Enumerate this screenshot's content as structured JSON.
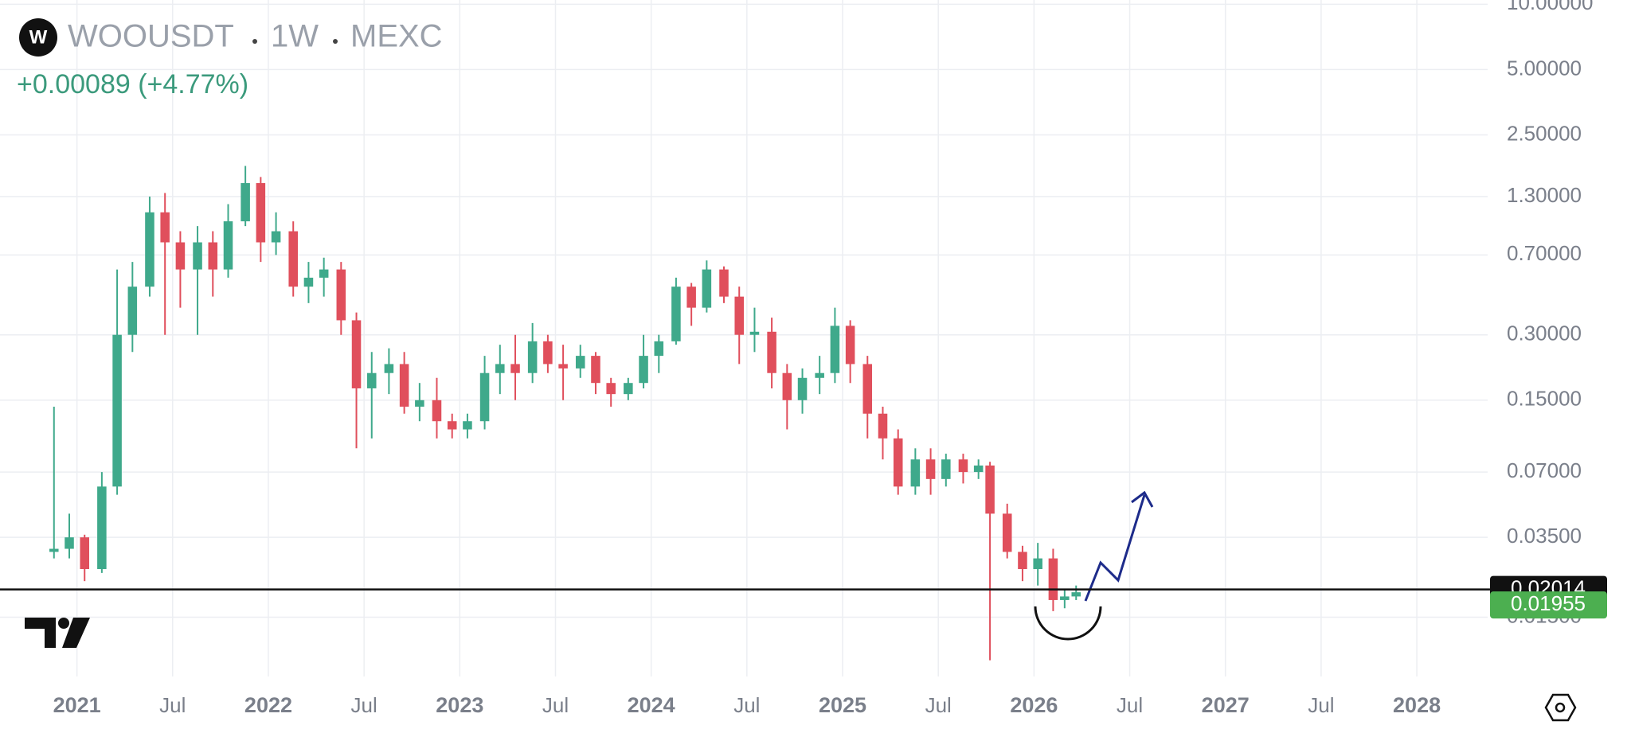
{
  "chart_data": {
    "type": "candlestick",
    "symbol": "WOOUSDT",
    "interval": "1W",
    "exchange": "MEXC",
    "change": "+0.00089 (+4.77%)",
    "log_scale": true,
    "grid": true,
    "up_color": "#3fa98b",
    "down_color": "#e04f5c",
    "xlim": [
      2020.598,
      2028.37
    ],
    "xticks": [
      {
        "value": 2021,
        "label": "2021"
      },
      {
        "value": 2021.5,
        "label": "Jul"
      },
      {
        "value": 2022,
        "label": "2022"
      },
      {
        "value": 2022.5,
        "label": "Jul"
      },
      {
        "value": 2023,
        "label": "2023"
      },
      {
        "value": 2023.5,
        "label": "Jul"
      },
      {
        "value": 2024,
        "label": "2024"
      },
      {
        "value": 2024.5,
        "label": "Jul"
      },
      {
        "value": 2025,
        "label": "2025"
      },
      {
        "value": 2025.5,
        "label": "Jul"
      },
      {
        "value": 2026,
        "label": "2026"
      },
      {
        "value": 2026.5,
        "label": "Jul"
      },
      {
        "value": 2027,
        "label": "2027"
      },
      {
        "value": 2027.5,
        "label": "Jul"
      },
      {
        "value": 2028,
        "label": "2028"
      }
    ],
    "ylim": [
      0.008,
      10.46
    ],
    "yticks": [
      {
        "value": 10,
        "label": "10.00000"
      },
      {
        "value": 5,
        "label": "5.00000"
      },
      {
        "value": 2.5,
        "label": "2.50000"
      },
      {
        "value": 1.3,
        "label": "1.30000"
      },
      {
        "value": 0.7,
        "label": "0.70000"
      },
      {
        "value": 0.3,
        "label": "0.30000"
      },
      {
        "value": 0.15,
        "label": "0.15000"
      },
      {
        "value": 0.07,
        "label": "0.07000"
      },
      {
        "value": 0.035,
        "label": "0.03500"
      },
      {
        "value": 0.015,
        "label": "0.01500"
      }
    ],
    "horizontal_line": {
      "value": 0.02014,
      "label": "0.02014"
    },
    "last_price": {
      "value": 0.01955,
      "label": "0.01955"
    },
    "x": [
      2020.88,
      2020.96,
      2021.04,
      2021.13,
      2021.21,
      2021.29,
      2021.38,
      2021.46,
      2021.54,
      2021.63,
      2021.71,
      2021.79,
      2021.88,
      2021.96,
      2022.04,
      2022.13,
      2022.21,
      2022.29,
      2022.38,
      2022.46,
      2022.54,
      2022.63,
      2022.71,
      2022.79,
      2022.88,
      2022.96,
      2023.04,
      2023.13,
      2023.21,
      2023.29,
      2023.38,
      2023.46,
      2023.54,
      2023.63,
      2023.71,
      2023.79,
      2023.88,
      2023.96,
      2024.04,
      2024.13,
      2024.21,
      2024.29,
      2024.38,
      2024.46,
      2024.54,
      2024.63,
      2024.71,
      2024.79,
      2024.88,
      2024.96,
      2025.04,
      2025.13,
      2025.21,
      2025.29,
      2025.38,
      2025.46,
      2025.54,
      2025.63,
      2025.71,
      2025.77,
      2025.86,
      2025.94,
      2026.02,
      2026.1,
      2026.16,
      2026.22
    ],
    "open": [
      0.03,
      0.031,
      0.035,
      0.025,
      0.06,
      0.3,
      0.5,
      1.1,
      0.8,
      0.6,
      0.8,
      0.6,
      1.0,
      1.5,
      0.8,
      0.9,
      0.5,
      0.55,
      0.6,
      0.35,
      0.17,
      0.2,
      0.22,
      0.14,
      0.15,
      0.12,
      0.11,
      0.12,
      0.2,
      0.22,
      0.2,
      0.28,
      0.22,
      0.21,
      0.24,
      0.18,
      0.16,
      0.18,
      0.24,
      0.28,
      0.5,
      0.4,
      0.6,
      0.45,
      0.3,
      0.31,
      0.2,
      0.15,
      0.19,
      0.2,
      0.33,
      0.22,
      0.13,
      0.1,
      0.06,
      0.08,
      0.065,
      0.08,
      0.07,
      0.075,
      0.045,
      0.03,
      0.025,
      0.028,
      0.018,
      0.0187
    ],
    "high": [
      0.14,
      0.045,
      0.036,
      0.07,
      0.6,
      0.65,
      1.3,
      1.35,
      0.9,
      0.95,
      0.9,
      1.2,
      1.8,
      1.6,
      1.1,
      1.0,
      0.65,
      0.68,
      0.65,
      0.38,
      0.25,
      0.26,
      0.25,
      0.18,
      0.19,
      0.13,
      0.13,
      0.24,
      0.27,
      0.3,
      0.34,
      0.3,
      0.27,
      0.27,
      0.25,
      0.19,
      0.19,
      0.3,
      0.3,
      0.55,
      0.52,
      0.66,
      0.62,
      0.5,
      0.4,
      0.36,
      0.22,
      0.21,
      0.24,
      0.4,
      0.35,
      0.24,
      0.14,
      0.11,
      0.09,
      0.09,
      0.085,
      0.085,
      0.08,
      0.078,
      0.05,
      0.032,
      0.033,
      0.031,
      0.02,
      0.021
    ],
    "low": [
      0.028,
      0.028,
      0.022,
      0.024,
      0.055,
      0.25,
      0.45,
      0.3,
      0.4,
      0.3,
      0.45,
      0.55,
      0.95,
      0.65,
      0.7,
      0.45,
      0.42,
      0.45,
      0.3,
      0.09,
      0.1,
      0.16,
      0.13,
      0.12,
      0.1,
      0.1,
      0.1,
      0.11,
      0.16,
      0.15,
      0.18,
      0.2,
      0.15,
      0.19,
      0.16,
      0.14,
      0.15,
      0.17,
      0.2,
      0.27,
      0.33,
      0.38,
      0.42,
      0.22,
      0.25,
      0.17,
      0.11,
      0.13,
      0.16,
      0.18,
      0.18,
      0.1,
      0.08,
      0.055,
      0.055,
      0.055,
      0.06,
      0.062,
      0.065,
      0.0095,
      0.028,
      0.022,
      0.021,
      0.016,
      0.0165,
      0.018
    ],
    "close": [
      0.031,
      0.035,
      0.025,
      0.06,
      0.3,
      0.5,
      1.1,
      0.8,
      0.6,
      0.8,
      0.6,
      1.0,
      1.5,
      0.8,
      0.9,
      0.5,
      0.55,
      0.6,
      0.35,
      0.17,
      0.2,
      0.22,
      0.14,
      0.15,
      0.12,
      0.11,
      0.12,
      0.2,
      0.22,
      0.2,
      0.28,
      0.22,
      0.21,
      0.24,
      0.18,
      0.16,
      0.18,
      0.24,
      0.28,
      0.5,
      0.4,
      0.6,
      0.45,
      0.3,
      0.31,
      0.2,
      0.15,
      0.19,
      0.2,
      0.33,
      0.22,
      0.13,
      0.1,
      0.06,
      0.08,
      0.065,
      0.08,
      0.07,
      0.075,
      0.045,
      0.03,
      0.025,
      0.028,
      0.018,
      0.0187,
      0.01955
    ]
  }
}
